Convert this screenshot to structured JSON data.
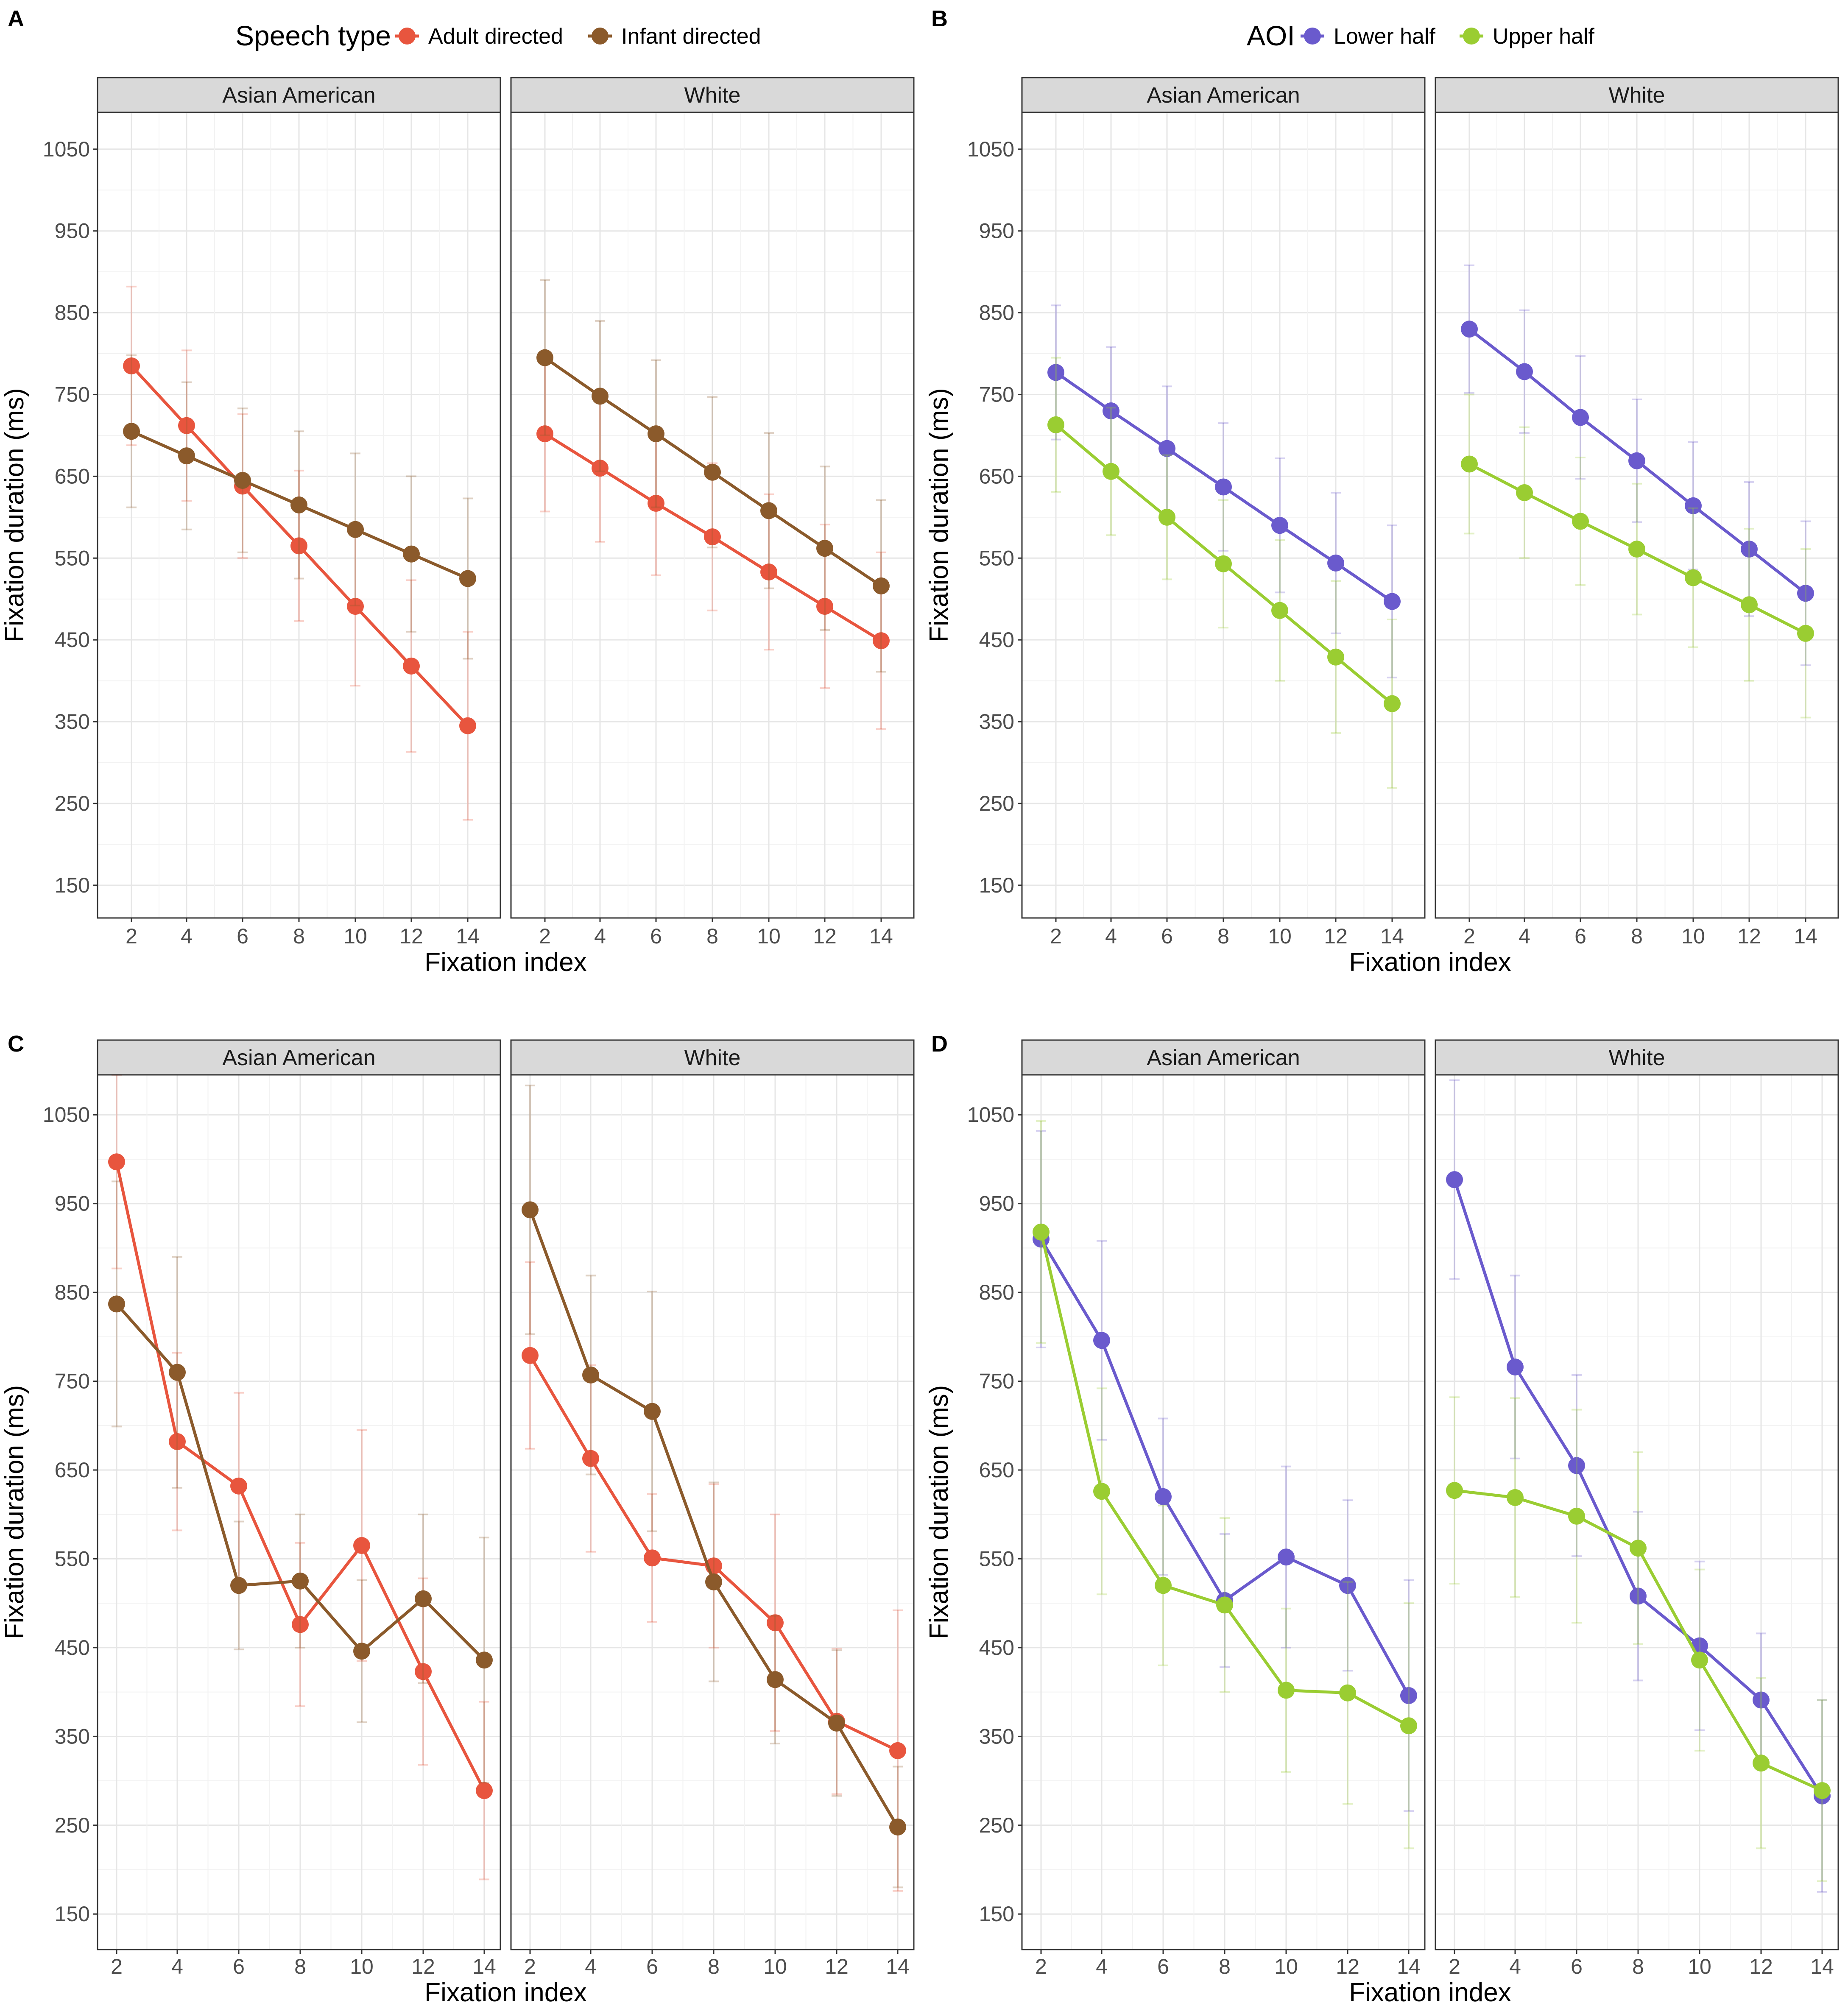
{
  "chart_data": [
    {
      "panel": "A",
      "type": "line",
      "legend_title": "Speech type",
      "xlabel": "Fixation index",
      "ylabel": "Fixation duration (ms)",
      "x_ticks": [
        2,
        4,
        6,
        8,
        10,
        12,
        14
      ],
      "y_ticks": [
        150,
        250,
        350,
        450,
        550,
        650,
        750,
        850,
        950,
        1050
      ],
      "ylim": [
        110,
        1095
      ],
      "facets": [
        {
          "label": "Asian American",
          "series": [
            {
              "name": "Adult directed",
              "color": "#E8553E",
              "x": [
                2,
                4,
                6,
                8,
                10,
                12,
                14
              ],
              "y": [
                785,
                712,
                638,
                565,
                491,
                418,
                345
              ],
              "err": [
                97,
                92,
                88,
                92,
                97,
                105,
                115
              ]
            },
            {
              "name": "Infant directed",
              "color": "#8B5A2B",
              "x": [
                2,
                4,
                6,
                8,
                10,
                12,
                14
              ],
              "y": [
                705,
                675,
                645,
                615,
                585,
                555,
                525
              ],
              "err": [
                93,
                90,
                88,
                90,
                93,
                95,
                98
              ]
            }
          ]
        },
        {
          "label": "White",
          "series": [
            {
              "name": "Adult directed",
              "color": "#E8553E",
              "x": [
                2,
                4,
                6,
                8,
                10,
                12,
                14
              ],
              "y": [
                702,
                660,
                617,
                576,
                533,
                491,
                449
              ],
              "err": [
                95,
                90,
                88,
                90,
                95,
                100,
                108
              ]
            },
            {
              "name": "Infant directed",
              "color": "#8B5A2B",
              "x": [
                2,
                4,
                6,
                8,
                10,
                12,
                14
              ],
              "y": [
                795,
                748,
                702,
                655,
                608,
                562,
                516
              ],
              "err": [
                95,
                92,
                90,
                92,
                95,
                100,
                105
              ]
            }
          ]
        }
      ]
    },
    {
      "panel": "B",
      "type": "line",
      "legend_title": "AOI",
      "xlabel": "Fixation index",
      "ylabel": "Fixation duration (ms)",
      "x_ticks": [
        2,
        4,
        6,
        8,
        10,
        12,
        14
      ],
      "y_ticks": [
        150,
        250,
        350,
        450,
        550,
        650,
        750,
        850,
        950,
        1050
      ],
      "ylim": [
        110,
        1095
      ],
      "facets": [
        {
          "label": "Asian American",
          "series": [
            {
              "name": "Lower half",
              "color": "#6A5ACD",
              "x": [
                2,
                4,
                6,
                8,
                10,
                12,
                14
              ],
              "y": [
                777,
                730,
                684,
                637,
                590,
                544,
                497
              ],
              "err": [
                82,
                78,
                76,
                78,
                82,
                86,
                93
              ]
            },
            {
              "name": "Upper half",
              "color": "#9ACD32",
              "x": [
                2,
                4,
                6,
                8,
                10,
                12,
                14
              ],
              "y": [
                713,
                656,
                600,
                543,
                486,
                429,
                372
              ],
              "err": [
                82,
                78,
                76,
                78,
                86,
                93,
                103
              ]
            }
          ]
        },
        {
          "label": "White",
          "series": [
            {
              "name": "Lower half",
              "color": "#6A5ACD",
              "x": [
                2,
                4,
                6,
                8,
                10,
                12,
                14
              ],
              "y": [
                830,
                778,
                722,
                669,
                614,
                561,
                507
              ],
              "err": [
                78,
                75,
                75,
                75,
                78,
                82,
                88
              ]
            },
            {
              "name": "Upper half",
              "color": "#9ACD32",
              "x": [
                2,
                4,
                6,
                8,
                10,
                12,
                14
              ],
              "y": [
                665,
                630,
                595,
                561,
                526,
                493,
                458
              ],
              "err": [
                85,
                80,
                78,
                80,
                85,
                93,
                103
              ]
            }
          ]
        }
      ]
    },
    {
      "panel": "C",
      "type": "line",
      "xlabel": "Fixation index",
      "ylabel": "Fixation duration (ms)",
      "x_ticks": [
        2,
        4,
        6,
        8,
        10,
        12,
        14
      ],
      "y_ticks": [
        150,
        250,
        350,
        450,
        550,
        650,
        750,
        850,
        950,
        1050
      ],
      "ylim": [
        110,
        1095
      ],
      "facets": [
        {
          "label": "Asian American",
          "series": [
            {
              "name": "Adult directed",
              "color": "#E8553E",
              "x": [
                2,
                4,
                6,
                8,
                10,
                12,
                14
              ],
              "y": [
                997,
                682,
                632,
                476,
                565,
                423,
                289
              ],
              "err": [
                120,
                100,
                105,
                92,
                130,
                105,
                100
              ]
            },
            {
              "name": "Infant directed",
              "color": "#8B5A2B",
              "x": [
                2,
                4,
                6,
                8,
                10,
                12,
                14
              ],
              "y": [
                837,
                760,
                520,
                525,
                446,
                505,
                436
              ],
              "err": [
                138,
                130,
                72,
                75,
                80,
                95,
                138
              ]
            }
          ]
        },
        {
          "label": "White",
          "series": [
            {
              "name": "Adult directed",
              "color": "#E8553E",
              "x": [
                2,
                4,
                6,
                8,
                10,
                12,
                14
              ],
              "y": [
                779,
                663,
                551,
                542,
                478,
                367,
                334
              ],
              "err": [
                105,
                105,
                72,
                92,
                122,
                82,
                158
              ]
            },
            {
              "name": "Infant directed",
              "color": "#8B5A2B",
              "x": [
                2,
                4,
                6,
                8,
                10,
                12,
                14
              ],
              "y": [
                943,
                757,
                716,
                524,
                414,
                365,
                248
              ],
              "err": [
                140,
                112,
                135,
                112,
                72,
                82,
                68
              ]
            }
          ]
        }
      ]
    },
    {
      "panel": "D",
      "type": "line",
      "xlabel": "Fixation index",
      "ylabel": "Fixation duration (ms)",
      "x_ticks": [
        2,
        4,
        6,
        8,
        10,
        12,
        14
      ],
      "y_ticks": [
        150,
        250,
        350,
        450,
        550,
        650,
        750,
        850,
        950,
        1050
      ],
      "ylim": [
        110,
        1095
      ],
      "facets": [
        {
          "label": "Asian American",
          "series": [
            {
              "name": "Lower half",
              "color": "#6A5ACD",
              "x": [
                2,
                4,
                6,
                8,
                10,
                12,
                14
              ],
              "y": [
                910,
                796,
                620,
                503,
                552,
                520,
                396
              ],
              "err": [
                122,
                112,
                88,
                75,
                102,
                96,
                130
              ]
            },
            {
              "name": "Upper half",
              "color": "#9ACD32",
              "x": [
                2,
                4,
                6,
                8,
                10,
                12,
                14
              ],
              "y": [
                918,
                626,
                520,
                498,
                402,
                399,
                362
              ],
              "err": [
                125,
                116,
                90,
                98,
                92,
                125,
                138
              ]
            }
          ]
        },
        {
          "label": "White",
          "series": [
            {
              "name": "Lower half",
              "color": "#6A5ACD",
              "x": [
                2,
                4,
                6,
                8,
                10,
                12,
                14
              ],
              "y": [
                977,
                766,
                655,
                508,
                452,
                391,
                283
              ],
              "err": [
                112,
                103,
                102,
                95,
                95,
                75,
                108
              ]
            },
            {
              "name": "Upper half",
              "color": "#9ACD32",
              "x": [
                2,
                4,
                6,
                8,
                10,
                12,
                14
              ],
              "y": [
                627,
                619,
                598,
                562,
                436,
                320,
                289
              ],
              "err": [
                105,
                112,
                120,
                108,
                102,
                96,
                102
              ]
            }
          ]
        }
      ]
    }
  ]
}
